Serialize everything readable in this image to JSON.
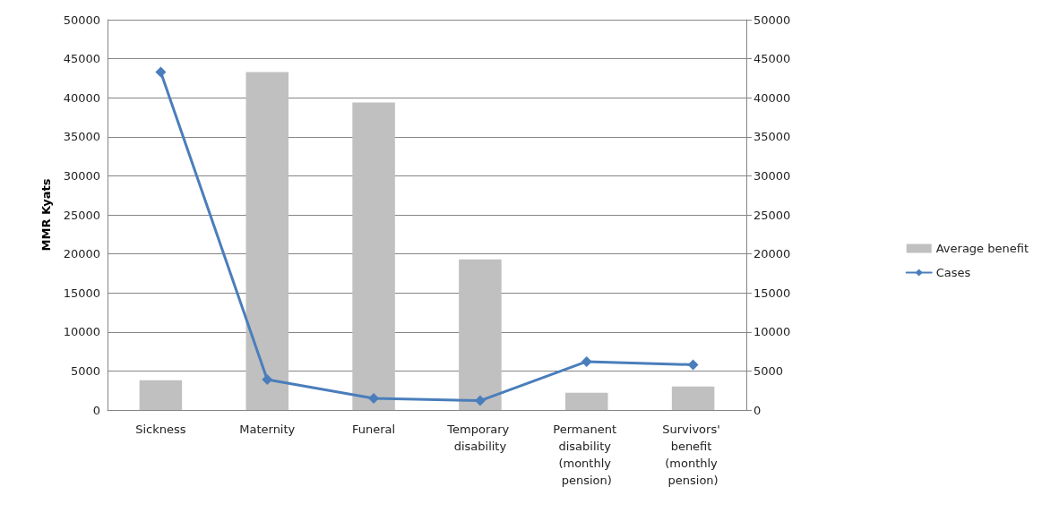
{
  "chart_data": {
    "type": "bar",
    "ylabel": "MMR Kyats",
    "categories": [
      "Sickness",
      "Maternity",
      "Funeral",
      "Temporary disability",
      "Permanent disability (monthly pension)",
      "Survivors' benefit (monthly pension)"
    ],
    "series": [
      {
        "name": "Average benefit",
        "color": "#c0c0c0",
        "values": [
          3800,
          43300,
          39400,
          19300,
          2200,
          3000
        ]
      },
      {
        "name": "Cases",
        "type": "line",
        "axis": "y2",
        "color": "#4a7ebb",
        "values": [
          43300,
          3900,
          1500,
          1200,
          6200,
          5800
        ]
      }
    ],
    "ylim": [
      0,
      50000
    ],
    "yticks": [
      0,
      5000,
      10000,
      15000,
      20000,
      25000,
      30000,
      35000,
      40000,
      45000,
      50000
    ],
    "y2lim": [
      0,
      50000
    ],
    "y2ticks": [
      0,
      5000,
      10000,
      15000,
      20000,
      25000,
      30000,
      35000,
      40000,
      45000,
      50000
    ],
    "grid": "y",
    "legend": "right",
    "marker": "diamond",
    "line_style": "solid"
  }
}
